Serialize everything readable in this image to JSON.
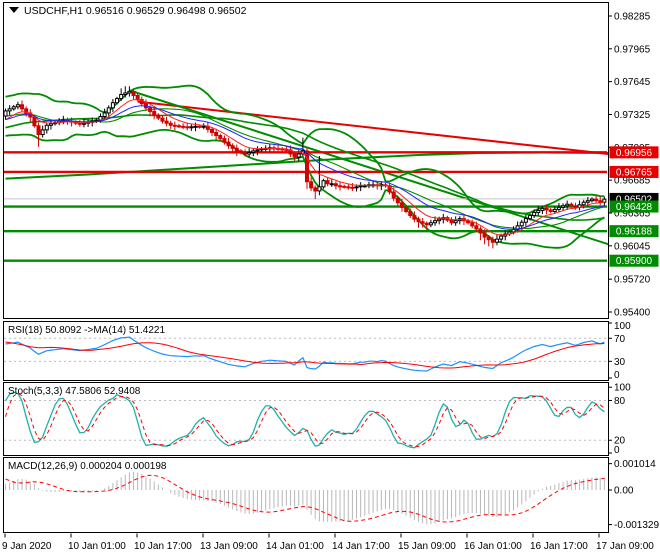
{
  "window": {
    "title_text": "USDCHF,H1  0.96516 0.96529 0.96498 0.96502",
    "symbol": "USDCHF",
    "timeframe": "H1",
    "quote_open": "0.96516",
    "quote_high": "0.96529",
    "quote_low": "0.96498",
    "quote_close": "0.96502"
  },
  "colors": {
    "background": "#ffffff",
    "border": "#000000",
    "text": "#000000",
    "resistance": "#e60000",
    "support": "#008c00",
    "current_line": "#c8c8c8",
    "current_badge": "#000000",
    "badge_text": "#ffffff",
    "candle_up": "#000000",
    "candle_down": "#d40000",
    "ma_fast": "#ff2020",
    "ma_slow": "#2222ff",
    "bands": "#008c00",
    "trend_red": "#e60000",
    "trend_green": "#008c00",
    "rsi": "#1e90ff",
    "rsi_ma": "#ff0000",
    "stoch": "#20b2aa",
    "stoch_signal": "#ff0000",
    "macd_hist": "#b8b8b8",
    "macd_signal": "#ff0000",
    "grid_dash": "#bbbbbb"
  },
  "price_axis": {
    "ticks": [
      {
        "value": 0.98285,
        "label": "0.98285"
      },
      {
        "value": 0.97965,
        "label": "0.97965"
      },
      {
        "value": 0.97645,
        "label": "0.97645"
      },
      {
        "value": 0.97325,
        "label": "0.97325"
      },
      {
        "value": 0.97005,
        "label": "0.97005"
      },
      {
        "value": 0.96685,
        "label": "0.96685"
      },
      {
        "value": 0.96365,
        "label": "0.96365"
      },
      {
        "value": 0.96045,
        "label": "0.96045"
      },
      {
        "value": 0.9572,
        "label": "0.95720"
      },
      {
        "value": 0.954,
        "label": "0.95400"
      }
    ],
    "badges": [
      {
        "value": 0.96956,
        "label": "0.96956",
        "bg": "#e60000"
      },
      {
        "value": 0.96765,
        "label": "0.96765",
        "bg": "#e60000"
      },
      {
        "value": 0.96502,
        "label": "0.96502",
        "bg": "#000000"
      },
      {
        "value": 0.96428,
        "label": "0.96428",
        "bg": "#008c00"
      },
      {
        "value": 0.96188,
        "label": "0.96188",
        "bg": "#008c00"
      },
      {
        "value": 0.959,
        "label": "0.95900",
        "bg": "#008c00"
      }
    ]
  },
  "time_axis": {
    "labels": [
      "9 Jan 2020",
      "10 Jan 01:00",
      "10 Jan 17:00",
      "13 Jan 09:00",
      "14 Jan 01:00",
      "14 Jan 17:00",
      "15 Jan 09:00",
      "16 Jan 01:00",
      "16 Jan 17:00",
      "17 Jan 09:00"
    ]
  },
  "panels": {
    "rsi": {
      "label": "RSI(18) 50.8092  ->MA(14) 51.4221",
      "value_main": "50.8092",
      "value_signal": "51.4221",
      "range": [
        0,
        100
      ],
      "ticks": [
        {
          "v": 100,
          "label": "100",
          "dash": false
        },
        {
          "v": 70,
          "label": "70",
          "dash": true
        },
        {
          "v": 30,
          "label": "30",
          "dash": true
        },
        {
          "v": 0,
          "label": "0",
          "dash": false
        }
      ]
    },
    "stoch": {
      "label": "Stoch(5,3,3) 47.5806 52.9408",
      "value_main": "47.5806",
      "value_signal": "52.9408",
      "range": [
        0,
        100
      ],
      "ticks": [
        {
          "v": 100,
          "label": "100",
          "dash": false
        },
        {
          "v": 80,
          "label": "80",
          "dash": true
        },
        {
          "v": 20,
          "label": "20",
          "dash": true
        },
        {
          "v": 0,
          "label": "0",
          "dash": false
        }
      ]
    },
    "macd": {
      "label": "MACD(12,26,9) 0.000204 0.000198",
      "value_main": "0.000204",
      "value_signal": "0.000198",
      "range": [
        -0.001329,
        0.001014
      ],
      "ticks": [
        {
          "v": 0.001014,
          "label": "0.001014",
          "dash": false
        },
        {
          "v": 0,
          "label": "0.00",
          "dash": false
        },
        {
          "v": -0.001329,
          "label": "-0.001329",
          "dash": false
        }
      ]
    }
  },
  "chart_data": {
    "type": "candlestick",
    "symbol": "USDCHF",
    "timeframe": "H1",
    "title": "USDCHF,H1  0.96516 0.96529 0.96498 0.96502",
    "x_labels": [
      "9 Jan 2020",
      "10 Jan 01:00",
      "10 Jan 17:00",
      "13 Jan 09:00",
      "14 Jan 01:00",
      "14 Jan 17:00",
      "15 Jan 09:00",
      "16 Jan 01:00",
      "16 Jan 17:00",
      "17 Jan 09:00"
    ],
    "y_ticks": [
      0.98285,
      0.97965,
      0.97645,
      0.97325,
      0.97005,
      0.96685,
      0.96365,
      0.96045,
      0.9572,
      0.954
    ],
    "ylim": [
      0.9533,
      0.9844
    ],
    "closes": [
      0.9736,
      0.9738,
      0.974,
      0.9742,
      0.9738,
      0.9734,
      0.973,
      0.97215,
      0.9713,
      0.97175,
      0.9722,
      0.97235,
      0.97245,
      0.9726,
      0.9727,
      0.9726,
      0.9725,
      0.9724,
      0.9723,
      0.9724,
      0.9725,
      0.9726,
      0.9727,
      0.97305,
      0.9734,
      0.9739,
      0.9744,
      0.9748,
      0.9752,
      0.97535,
      0.9755,
      0.9751,
      0.9747,
      0.9743,
      0.9739,
      0.97355,
      0.9732,
      0.9729,
      0.9726,
      0.9724,
      0.9722,
      0.97215,
      0.9721,
      0.97205,
      0.972,
      0.97205,
      0.9721,
      0.97205,
      0.9721,
      0.9718,
      0.9715,
      0.9712,
      0.9709,
      0.97055,
      0.9702,
      0.96995,
      0.9697,
      0.96955,
      0.9694,
      0.96955,
      0.9697,
      0.9698,
      0.9699,
      0.96995,
      0.97,
      0.96995,
      0.9699,
      0.96985,
      0.9698,
      0.9694,
      0.9691,
      0.9694,
      0.9697,
      0.9667,
      0.9661,
      0.9658,
      0.9662,
      0.9668,
      0.9665,
      0.9665,
      0.9663,
      0.96625,
      0.9662,
      0.96615,
      0.9661,
      0.9662,
      0.9663,
      0.9663,
      0.9664,
      0.9664,
      0.9663,
      0.9664,
      0.9663,
      0.9657,
      0.9651,
      0.96465,
      0.9642,
      0.9638,
      0.9634,
      0.96305,
      0.9628,
      0.96265,
      0.9625,
      0.9627,
      0.9629,
      0.96305,
      0.9632,
      0.96295,
      0.9627,
      0.9629,
      0.9631,
      0.9629,
      0.9627,
      0.9624,
      0.9621,
      0.9617,
      0.9613,
      0.96105,
      0.9608,
      0.9611,
      0.9614,
      0.9616,
      0.9618,
      0.96205,
      0.9624,
      0.96275,
      0.9631,
      0.9634,
      0.9637,
      0.9639,
      0.9641,
      0.96395,
      0.9638,
      0.964,
      0.9642,
      0.96435,
      0.9645,
      0.96435,
      0.9642,
      0.96445,
      0.9647,
      0.96485,
      0.965,
      0.96485,
      0.9647,
      0.965
    ],
    "preroll": [
      0.9688,
      0.9691,
      0.9689,
      0.9693,
      0.9695,
      0.9693,
      0.9697,
      0.9699,
      0.9697,
      0.9701,
      0.9703,
      0.9701,
      0.9705,
      0.9707,
      0.9705,
      0.9709,
      0.9711,
      0.9709,
      0.9713,
      0.9715,
      0.9713,
      0.9717,
      0.9719,
      0.9717,
      0.9721,
      0.9723,
      0.9721,
      0.9725,
      0.9727,
      0.9725,
      0.9729,
      0.9731,
      0.9729,
      0.9733,
      0.9735,
      0.9737,
      0.9739,
      0.9741,
      0.9743,
      0.9745,
      0.9741,
      0.9733,
      0.9724,
      0.9716,
      0.9709,
      0.9714,
      0.9724,
      0.9731
    ],
    "wick_overrides": {
      "8": {
        "l": 0.9701
      },
      "28": {
        "h": 0.9758
      },
      "29": {
        "h": 0.976
      },
      "30": {
        "h": 0.976
      },
      "31": {
        "h": 0.9757
      },
      "56": {
        "l": 0.9692
      },
      "72": {
        "h": 0.971
      },
      "73": {
        "l": 0.966
      },
      "75": {
        "l": 0.965
      },
      "76": {
        "h": 0.9692
      },
      "100": {
        "l": 0.9622
      },
      "102": {
        "l": 0.962
      },
      "115": {
        "l": 0.961
      },
      "116": {
        "l": 0.9606
      },
      "117": {
        "l": 0.9604
      },
      "118": {
        "l": 0.9602
      },
      "119": {
        "l": 0.9605
      },
      "120": {
        "l": 0.9608
      }
    },
    "levels": [
      {
        "price": 0.96956,
        "type": "resistance"
      },
      {
        "price": 0.96765,
        "type": "resistance"
      },
      {
        "price": 0.96428,
        "type": "support"
      },
      {
        "price": 0.96188,
        "type": "support"
      },
      {
        "price": 0.959,
        "type": "support"
      }
    ],
    "current_price": 0.96502,
    "trendlines": [
      {
        "color": "trend_red",
        "from_bar": 32,
        "from_price": 0.9745,
        "to_bar": 146,
        "to_price": 0.9694
      },
      {
        "color": "trend_green",
        "from_bar": 30,
        "from_price": 0.9756,
        "to_bar": 146,
        "to_price": 0.9606
      }
    ],
    "green_slow_ma": [
      [
        0,
        0.967
      ],
      [
        20,
        0.9674
      ],
      [
        40,
        0.9679
      ],
      [
        60,
        0.9684
      ],
      [
        80,
        0.9689
      ],
      [
        100,
        0.9693
      ],
      [
        115,
        0.9695
      ],
      [
        130,
        0.96955
      ],
      [
        146,
        0.9695
      ]
    ],
    "indicators": {
      "bb_period": 20,
      "bb_dev": 2,
      "ma_fast": 8,
      "ma_slow": 17,
      "ma_green": 44,
      "rsi_period": 18,
      "rsi_ma": 14,
      "stoch": [
        5,
        3,
        3
      ],
      "macd": [
        12,
        26,
        9
      ]
    }
  }
}
